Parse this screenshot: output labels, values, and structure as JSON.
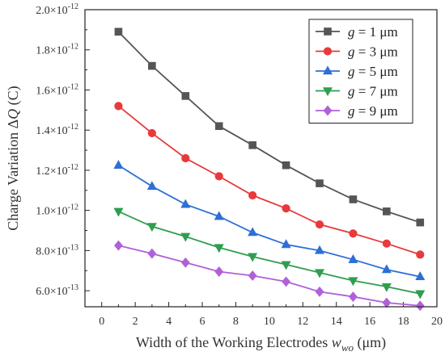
{
  "chart_data": {
    "type": "line",
    "xlabel": {
      "prefix": "Width of the Working Electrodes ",
      "var": "w",
      "sub": "wo",
      "suffix": " (μm)"
    },
    "ylabel": {
      "prefix": "Charge Variation Δ",
      "var": "Q",
      "suffix": " (C)"
    },
    "xlim": [
      -1,
      20
    ],
    "ylim": [
      5.2e-13,
      2e-12
    ],
    "x_ticks": [
      0,
      2,
      4,
      6,
      8,
      10,
      12,
      14,
      16,
      18,
      20
    ],
    "y_ticks": [
      {
        "value": 6e-13,
        "mantissa": "6.0",
        "exp": "-13"
      },
      {
        "value": 8e-13,
        "mantissa": "8.0",
        "exp": "-13"
      },
      {
        "value": 1e-12,
        "mantissa": "1.0",
        "exp": "-12"
      },
      {
        "value": 1.2e-12,
        "mantissa": "1.2",
        "exp": "-12"
      },
      {
        "value": 1.4e-12,
        "mantissa": "1.4",
        "exp": "-12"
      },
      {
        "value": 1.6e-12,
        "mantissa": "1.6",
        "exp": "-12"
      },
      {
        "value": 1.8e-12,
        "mantissa": "1.8",
        "exp": "-12"
      },
      {
        "value": 2e-12,
        "mantissa": "2.0",
        "exp": "-12"
      }
    ],
    "grid": false,
    "legend_position": "top-right",
    "x": [
      1,
      3,
      5,
      7,
      9,
      11,
      13,
      15,
      17,
      19
    ],
    "series": [
      {
        "name": "g = 1 μm",
        "var": "g",
        "rest": " = 1 μm",
        "color": "#555555",
        "marker": "square",
        "values": [
          1.89e-12,
          1.72e-12,
          1.57e-12,
          1.42e-12,
          1.325e-12,
          1.225e-12,
          1.135e-12,
          1.055e-12,
          9.95e-13,
          9.4e-13
        ]
      },
      {
        "name": "g = 3 μm",
        "var": "g",
        "rest": " = 3 μm",
        "color": "#e8393b",
        "marker": "circle",
        "values": [
          1.52e-12,
          1.385e-12,
          1.26e-12,
          1.17e-12,
          1.075e-12,
          1.01e-12,
          9.3e-13,
          8.85e-13,
          8.35e-13,
          7.8e-13
        ]
      },
      {
        "name": "g = 5 μm",
        "var": "g",
        "rest": " = 5 μm",
        "color": "#2d6fd6",
        "marker": "triangle-up",
        "values": [
          1.225e-12,
          1.12e-12,
          1.03e-12,
          9.7e-13,
          8.9e-13,
          8.3e-13,
          8e-13,
          7.55e-13,
          7.05e-13,
          6.7e-13
        ]
      },
      {
        "name": "g = 7 μm",
        "var": "g",
        "rest": " = 7 μm",
        "color": "#2e9e4f",
        "marker": "triangle-down",
        "values": [
          9.95e-13,
          9.2e-13,
          8.7e-13,
          8.15e-13,
          7.7e-13,
          7.3e-13,
          6.9e-13,
          6.5e-13,
          6.2e-13,
          5.85e-13
        ]
      },
      {
        "name": "g = 9 μm",
        "var": "g",
        "rest": " = 9 μm",
        "color": "#b060d8",
        "marker": "diamond",
        "values": [
          8.25e-13,
          7.85e-13,
          7.4e-13,
          6.95e-13,
          6.75e-13,
          6.45e-13,
          5.95e-13,
          5.7e-13,
          5.4e-13,
          5.25e-13
        ]
      }
    ]
  }
}
